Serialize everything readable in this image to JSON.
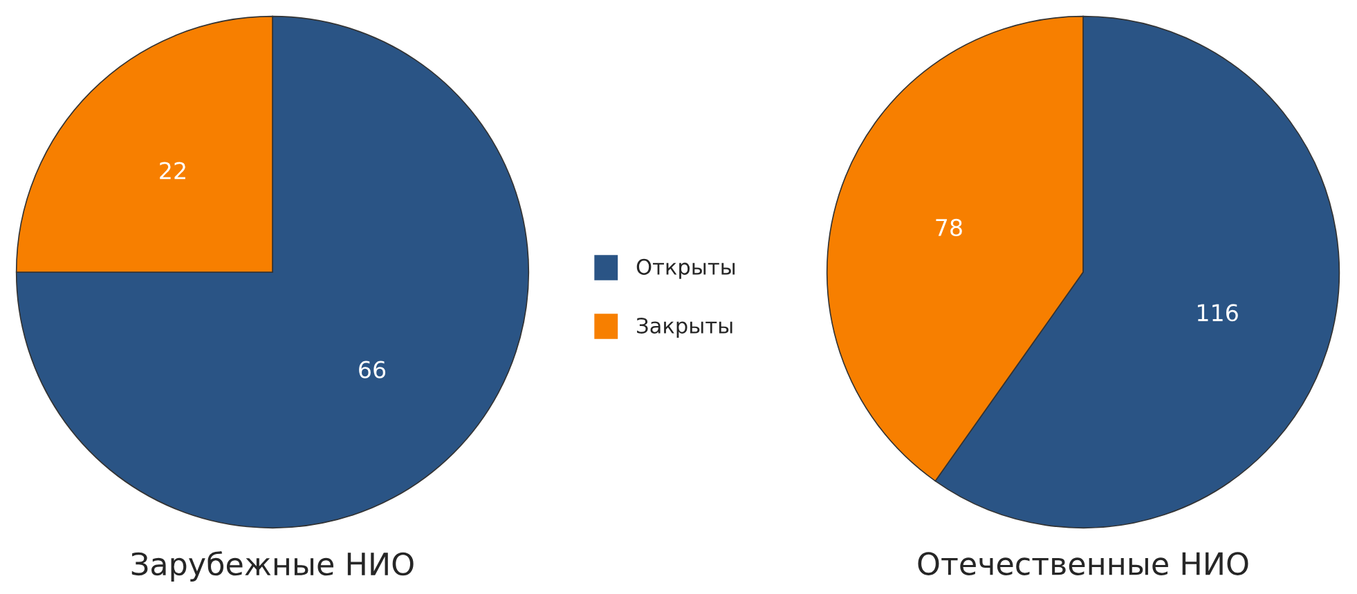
{
  "chart_data": [
    {
      "type": "pie",
      "xlabel": "Зарубежные НИО",
      "categories": [
        "Открыты",
        "Закрыты"
      ],
      "values": [
        66,
        22
      ],
      "colors": [
        "#2a5485",
        "#f77f00"
      ],
      "data_labels": true,
      "legend": "right"
    },
    {
      "type": "pie",
      "xlabel": "Отечественные НИО",
      "categories": [
        null,
        null
      ],
      "values": [
        116,
        78
      ],
      "colors": [
        "#2a5485",
        "#f77f00"
      ],
      "data_labels": true
    }
  ]
}
